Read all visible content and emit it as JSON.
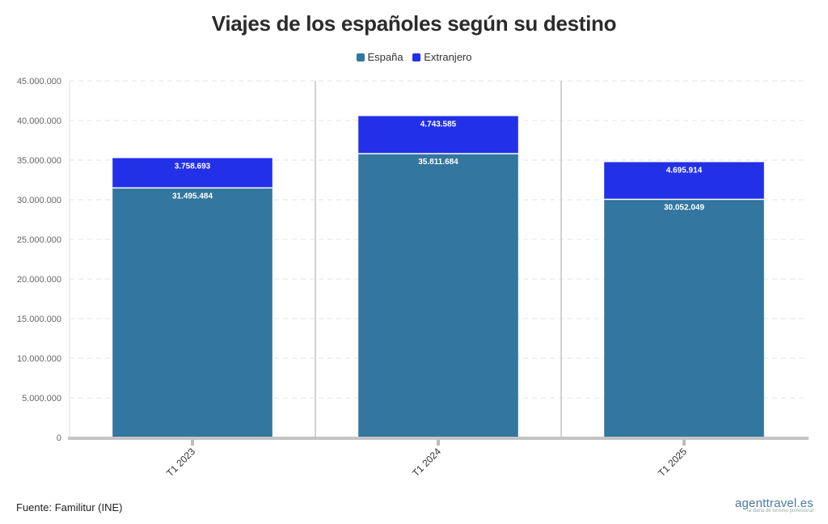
{
  "colors": {
    "spain": "#33769f",
    "abroad": "#2230e8"
  },
  "footer": {
    "source": "Fuente: Familitur (INE)",
    "logo": "agenttravel.es",
    "logo_tagline": "la diaria de turismo profesional"
  },
  "chart_data": {
    "type": "bar",
    "stacked": true,
    "title": "Viajes de los españoles según su destino",
    "categories": [
      "T1 2023",
      "T1 2024",
      "T1 2025"
    ],
    "series": [
      {
        "name": "España",
        "values": [
          31495484,
          35811684,
          30052049
        ],
        "labels": [
          "31.495.484",
          "35.811.684",
          "30.052.049"
        ]
      },
      {
        "name": "Extranjero",
        "values": [
          3758693,
          4743585,
          4695914
        ],
        "labels": [
          "3.758.693",
          "4.743.585",
          "4.695.914"
        ]
      }
    ],
    "ylim": [
      0,
      45000000
    ],
    "yticks": [
      0,
      5000000,
      10000000,
      15000000,
      20000000,
      25000000,
      30000000,
      35000000,
      40000000,
      45000000
    ],
    "ytick_labels": [
      "0",
      "5.000.000",
      "10.000.000",
      "15.000.000",
      "20.000.000",
      "25.000.000",
      "30.000.000",
      "35.000.000",
      "40.000.000",
      "45.000.000"
    ],
    "legend_position": "top-center",
    "grid": true
  }
}
